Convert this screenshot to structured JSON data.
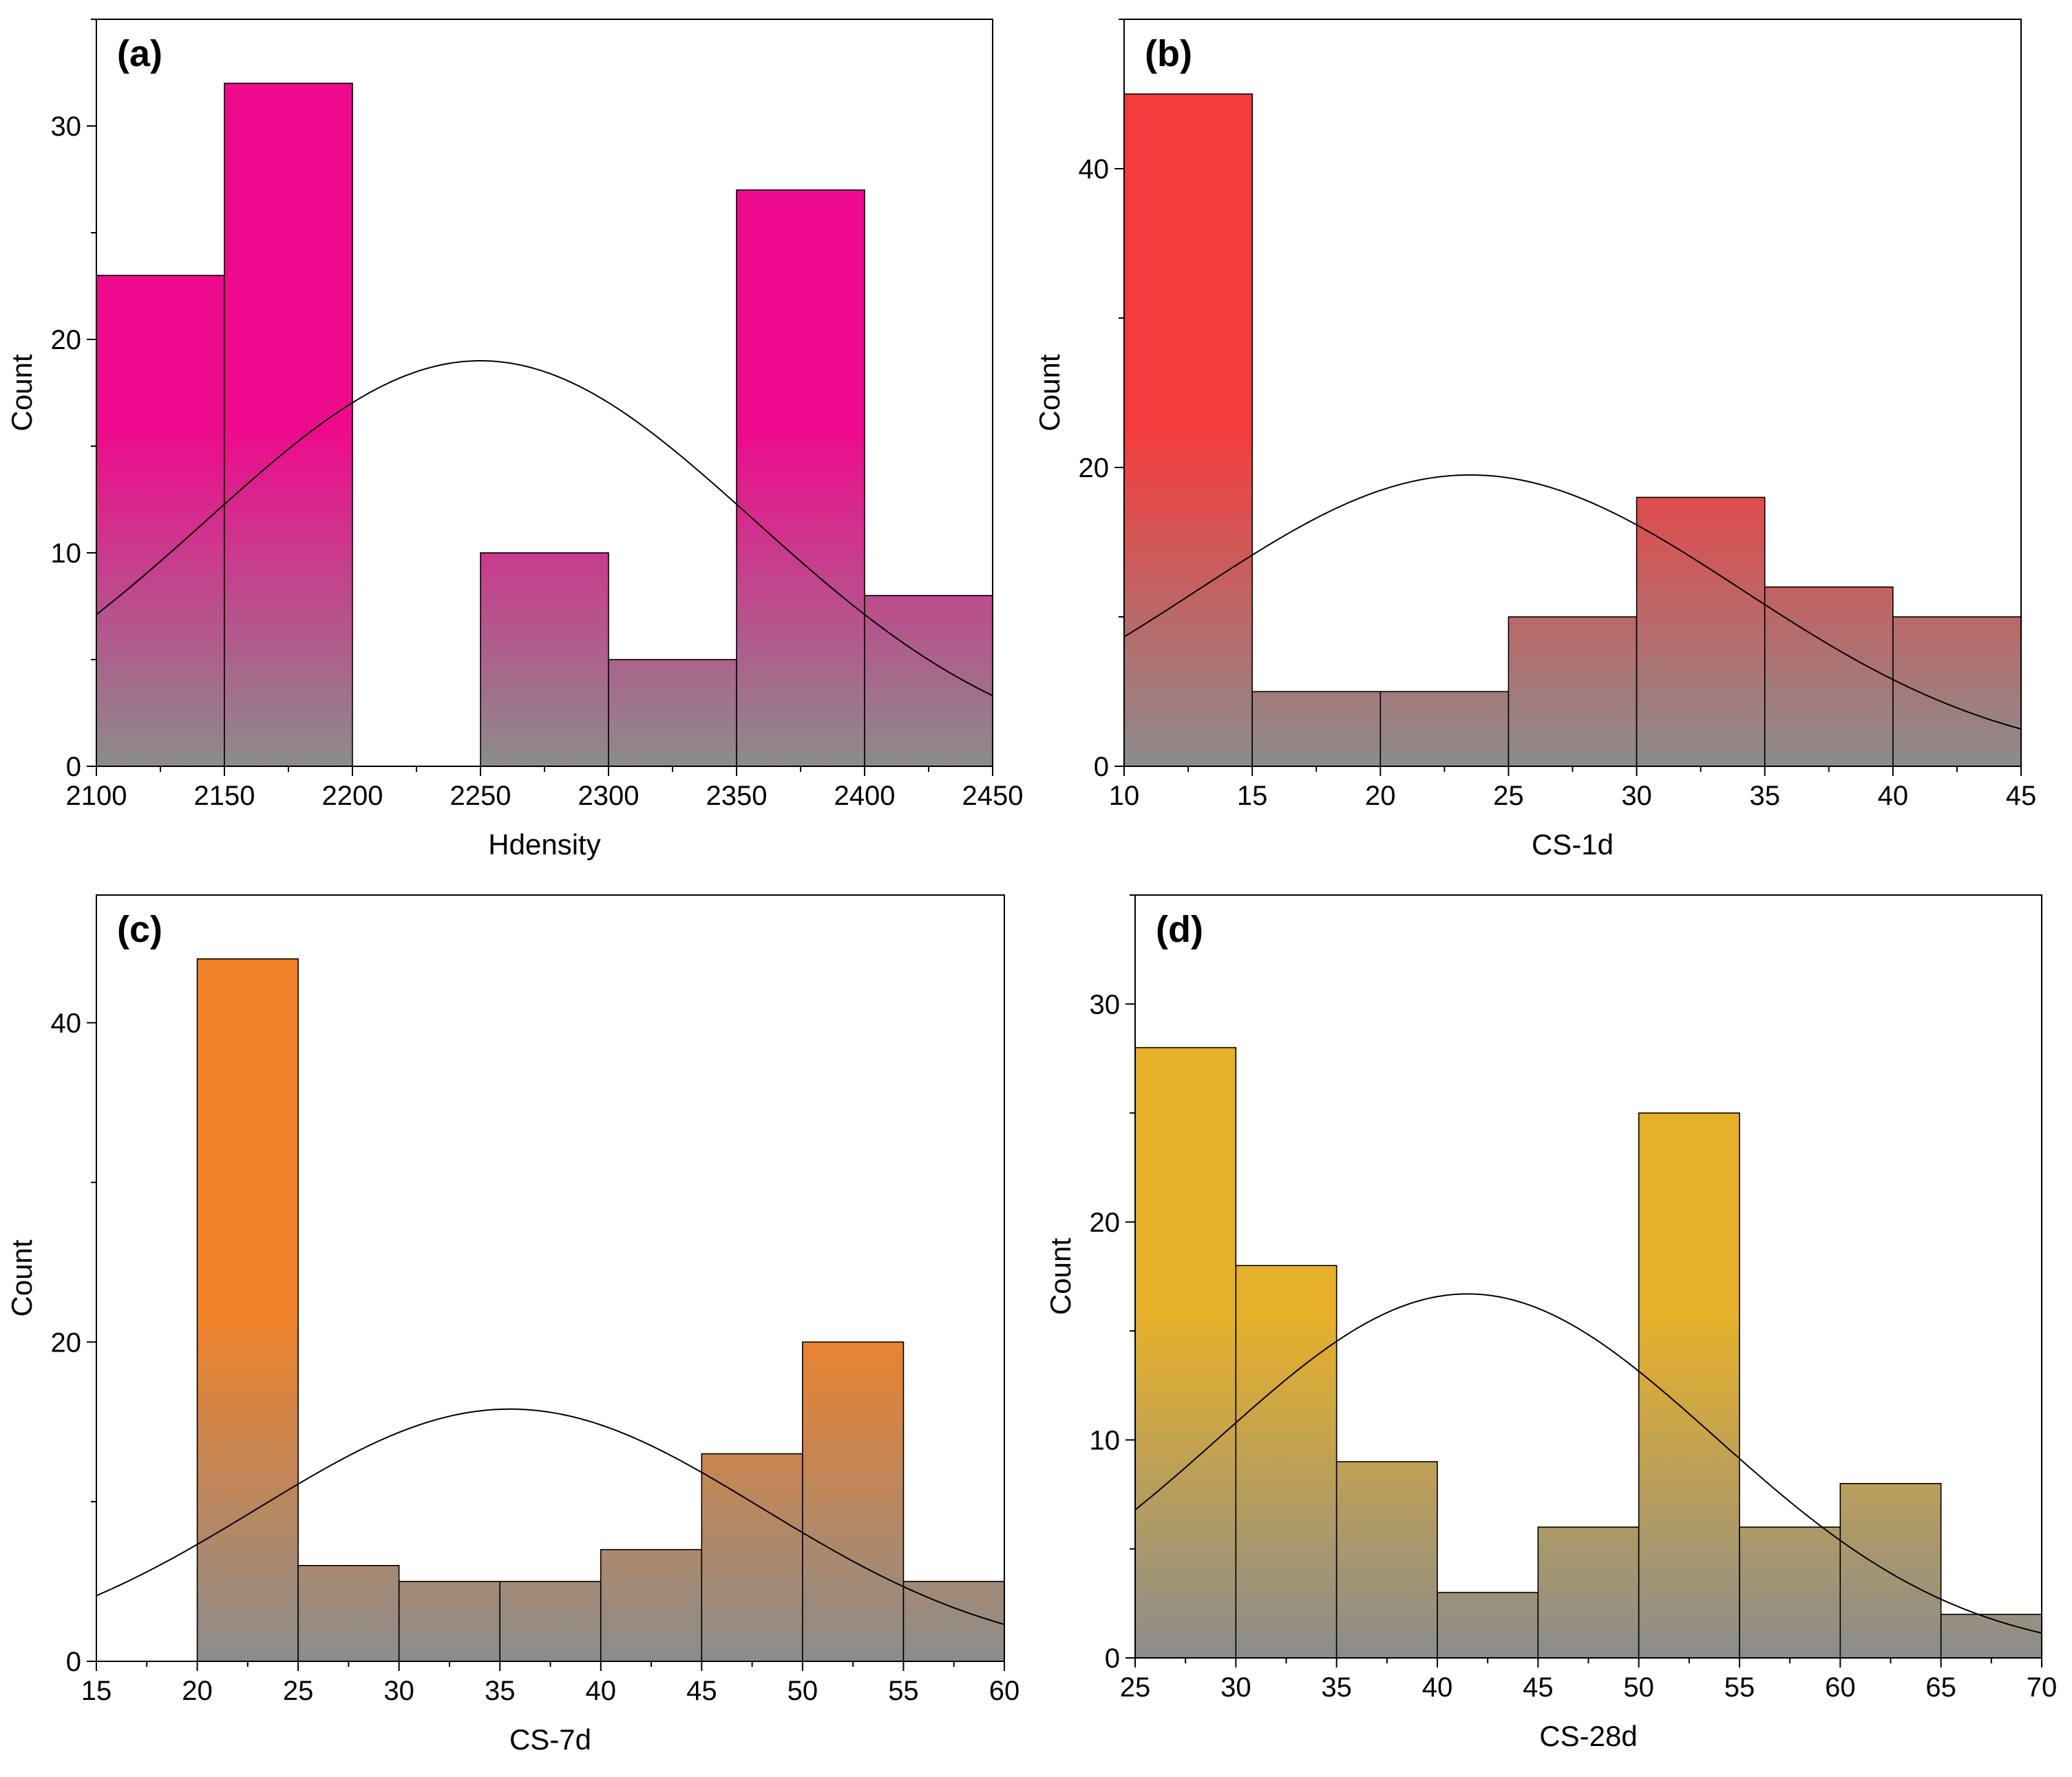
{
  "chart_data": [
    {
      "type": "bar",
      "panel_label": "(a)",
      "xlabel": "Hdensity",
      "ylabel": "Count",
      "color": "#ee0a8c",
      "xlim": [
        2100,
        2450
      ],
      "ylim": [
        0,
        35
      ],
      "xticks": [
        2100,
        2150,
        2200,
        2250,
        2300,
        2350,
        2400,
        2450
      ],
      "yticks": [
        0,
        10,
        20,
        30
      ],
      "bins": [
        {
          "x0": 2100,
          "x1": 2150,
          "count": 23
        },
        {
          "x0": 2150,
          "x1": 2200,
          "count": 32
        },
        {
          "x0": 2200,
          "x1": 2250,
          "count": 0
        },
        {
          "x0": 2250,
          "x1": 2300,
          "count": 10
        },
        {
          "x0": 2300,
          "x1": 2350,
          "count": 5
        },
        {
          "x0": 2350,
          "x1": 2400,
          "count": 27
        },
        {
          "x0": 2400,
          "x1": 2450,
          "count": 8
        }
      ],
      "normal_fit": {
        "mean": 2250,
        "sd": 107,
        "peak": 19.0
      }
    },
    {
      "type": "bar",
      "panel_label": "(b)",
      "xlabel": "CS-1d",
      "ylabel": "Count",
      "color": "#f53c3c",
      "xlim": [
        10,
        45
      ],
      "ylim": [
        0,
        50
      ],
      "xticks": [
        10,
        15,
        20,
        25,
        30,
        35,
        40,
        45
      ],
      "yticks": [
        0,
        20,
        40
      ],
      "bins": [
        {
          "x0": 10,
          "x1": 15,
          "count": 45
        },
        {
          "x0": 15,
          "x1": 20,
          "count": 5
        },
        {
          "x0": 20,
          "x1": 25,
          "count": 5
        },
        {
          "x0": 25,
          "x1": 30,
          "count": 10
        },
        {
          "x0": 30,
          "x1": 35,
          "count": 18
        },
        {
          "x0": 35,
          "x1": 40,
          "count": 12
        },
        {
          "x0": 40,
          "x1": 45,
          "count": 10
        }
      ],
      "normal_fit": {
        "mean": 23.5,
        "sd": 10.6,
        "peak": 19.5
      }
    },
    {
      "type": "bar",
      "panel_label": "(c)",
      "xlabel": "CS-7d",
      "ylabel": "Count",
      "color": "#f0822a",
      "xlim": [
        15,
        60
      ],
      "ylim": [
        0,
        48
      ],
      "xticks": [
        15,
        20,
        25,
        30,
        35,
        40,
        45,
        50,
        55,
        60
      ],
      "yticks": [
        0,
        20,
        40
      ],
      "bins": [
        {
          "x0": 20,
          "x1": 25,
          "count": 44
        },
        {
          "x0": 25,
          "x1": 30,
          "count": 6
        },
        {
          "x0": 30,
          "x1": 35,
          "count": 5
        },
        {
          "x0": 35,
          "x1": 40,
          "count": 5
        },
        {
          "x0": 40,
          "x1": 45,
          "count": 7
        },
        {
          "x0": 45,
          "x1": 50,
          "count": 13
        },
        {
          "x0": 50,
          "x1": 55,
          "count": 20
        },
        {
          "x0": 55,
          "x1": 60,
          "count": 5
        }
      ],
      "normal_fit": {
        "mean": 35.5,
        "sd": 12.5,
        "peak": 15.8
      }
    },
    {
      "type": "bar",
      "panel_label": "(d)",
      "xlabel": "CS-28d",
      "ylabel": "Count",
      "color": "#e6b02a",
      "xlim": [
        25,
        70
      ],
      "ylim": [
        0,
        35
      ],
      "xticks": [
        25,
        30,
        35,
        40,
        45,
        50,
        55,
        60,
        65,
        70
      ],
      "yticks": [
        0,
        10,
        20,
        30
      ],
      "bins": [
        {
          "x0": 25,
          "x1": 30,
          "count": 28
        },
        {
          "x0": 30,
          "x1": 35,
          "count": 18
        },
        {
          "x0": 35,
          "x1": 40,
          "count": 9
        },
        {
          "x0": 40,
          "x1": 45,
          "count": 3
        },
        {
          "x0": 45,
          "x1": 50,
          "count": 6
        },
        {
          "x0": 50,
          "x1": 55,
          "count": 25
        },
        {
          "x0": 55,
          "x1": 60,
          "count": 6
        },
        {
          "x0": 60,
          "x1": 65,
          "count": 8
        },
        {
          "x0": 65,
          "x1": 70,
          "count": 2
        }
      ],
      "normal_fit": {
        "mean": 41.5,
        "sd": 12.3,
        "peak": 16.7
      }
    }
  ]
}
